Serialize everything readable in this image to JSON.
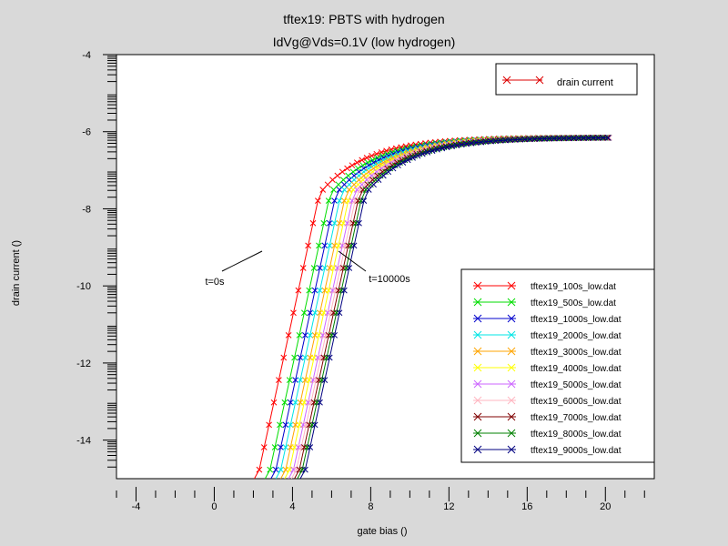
{
  "title": "tftex19: PBTS with hydrogen",
  "subtitle": "IdVg@Vds=0.1V (low hydrogen)",
  "chart_data": {
    "type": "line",
    "xlabel": "gate bias ()",
    "ylabel": "drain current ()",
    "xlim": [
      -5,
      22.5
    ],
    "ylim": [
      -15,
      -4
    ],
    "xticks": [
      "-4",
      "0",
      "4",
      "8",
      "12",
      "16",
      "20"
    ],
    "yticks": [
      "-4",
      "-6",
      "-8",
      "-10",
      "-12",
      "-14"
    ],
    "legend_top": {
      "label": "drain current",
      "color": "#dd0000",
      "placement": "top-right"
    },
    "legend_placement": "lower-right",
    "annotations": [
      {
        "text": "t=0s"
      },
      {
        "text": "t=10000s"
      }
    ],
    "series": [
      {
        "name": "tftex19_100s_low.dat",
        "color": "#ff0000",
        "vth": 4.0
      },
      {
        "name": "tftex19_500s_low.dat",
        "color": "#00dd00",
        "vth": 4.55
      },
      {
        "name": "tftex19_1000s_low.dat",
        "color": "#0000cc",
        "vth": 4.85
      },
      {
        "name": "tftex19_2000s_low.dat",
        "color": "#00e5e5",
        "vth": 5.1
      },
      {
        "name": "tftex19_3000s_low.dat",
        "color": "#ffa500",
        "vth": 5.35
      },
      {
        "name": "tftex19_4000s_low.dat",
        "color": "#ffff00",
        "vth": 5.55
      },
      {
        "name": "tftex19_5000s_low.dat",
        "color": "#cc66ff",
        "vth": 5.75
      },
      {
        "name": "tftex19_6000s_low.dat",
        "color": "#ffb6c1",
        "vth": 5.9
      },
      {
        "name": "tftex19_7000s_low.dat",
        "color": "#800000",
        "vth": 6.05
      },
      {
        "name": "tftex19_8000s_low.dat",
        "color": "#008000",
        "vth": 6.2
      },
      {
        "name": "tftex19_9000s_low.dat",
        "color": "#000080",
        "vth": 6.35
      }
    ],
    "model": {
      "ss": 0.43,
      "ymin": -16,
      "ysat": -6.15,
      "k": 0.215,
      "k2": 0.15,
      "x_end": 20.2,
      "sample_step": 0.25
    }
  }
}
